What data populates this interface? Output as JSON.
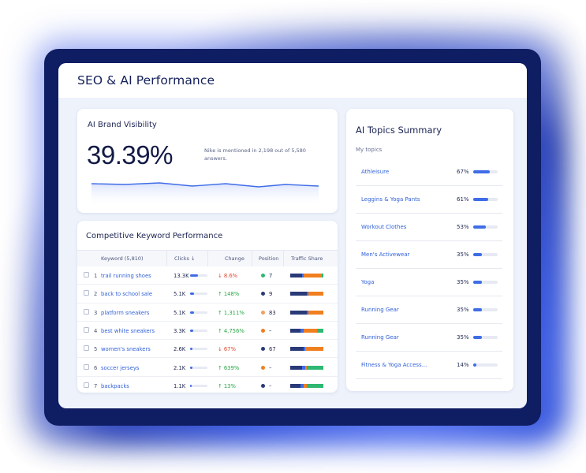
{
  "page": {
    "title": "SEO & AI Performance"
  },
  "brand_visibility": {
    "title": "AI Brand Visibility",
    "value": "39.39%",
    "note": "Nike is mentioned in 2,198 out of 5,580 answers."
  },
  "keywords": {
    "title": "Competitive Keyword Performance",
    "columns": {
      "keyword": "Keyword (5,810)",
      "clicks": "Clicks ↓",
      "change": "Change",
      "position": "Position",
      "traffic_share": "Traffic Share"
    },
    "rows": [
      {
        "n": "1",
        "keyword": "trail running shoes",
        "clicks": "13.3K",
        "click_frac": 0.45,
        "change": "↓ 8.6%",
        "dir": "down",
        "dot": "#2eb872",
        "position": "7",
        "share": [
          0.35,
          0.05,
          0.55,
          0.05
        ]
      },
      {
        "n": "2",
        "keyword": "back to school sale",
        "clicks": "5.1K",
        "click_frac": 0.22,
        "change": "↑ 148%",
        "dir": "up",
        "dot": "#2a3a78",
        "position": "9",
        "share": [
          0.5,
          0.05,
          0.45,
          0.0
        ]
      },
      {
        "n": "3",
        "keyword": "platform sneakers",
        "clicks": "5.1K",
        "click_frac": 0.22,
        "change": "↑ 1,311%",
        "dir": "up",
        "dot": "#f0a060",
        "position": "83",
        "share": [
          0.5,
          0.05,
          0.45,
          0.0
        ]
      },
      {
        "n": "4",
        "keyword": "best white sneakers",
        "clicks": "3.3K",
        "click_frac": 0.18,
        "change": "↑ 4,756%",
        "dir": "up",
        "dot": "#f07f1f",
        "position": "–",
        "share": [
          0.3,
          0.1,
          0.4,
          0.2
        ]
      },
      {
        "n": "5",
        "keyword": "women's sneakers",
        "clicks": "2.6K",
        "click_frac": 0.15,
        "change": "↓ 67%",
        "dir": "down",
        "dot": "#2a3a78",
        "position": "67",
        "share": [
          0.4,
          0.05,
          0.55,
          0.0
        ]
      },
      {
        "n": "6",
        "keyword": "soccer jerseys",
        "clicks": "2.1K",
        "click_frac": 0.12,
        "change": "↑ 639%",
        "dir": "up",
        "dot": "#f07f1f",
        "position": "–",
        "share": [
          0.35,
          0.1,
          0.05,
          0.5
        ]
      },
      {
        "n": "7",
        "keyword": "backpacks",
        "clicks": "1.1K",
        "click_frac": 0.08,
        "change": "↑ 13%",
        "dir": "up",
        "dot": "#2a3a78",
        "position": "–",
        "share": [
          0.3,
          0.1,
          0.1,
          0.5
        ]
      }
    ],
    "share_colors": [
      "#2a3a78",
      "#3f6de6",
      "#f07f1f",
      "#2eb872"
    ]
  },
  "topics": {
    "title": "AI Topics Summary",
    "subtitle": "My topics",
    "items": [
      {
        "name": "Athleisure",
        "pct": "67%",
        "frac": 0.67
      },
      {
        "name": "Leggins & Yoga Pants",
        "pct": "61%",
        "frac": 0.61
      },
      {
        "name": "Workout Clothes",
        "pct": "53%",
        "frac": 0.53
      },
      {
        "name": "Men's Activewear",
        "pct": "35%",
        "frac": 0.35
      },
      {
        "name": "Yoga",
        "pct": "35%",
        "frac": 0.35
      },
      {
        "name": "Running Gear",
        "pct": "35%",
        "frac": 0.35
      },
      {
        "name": "Running Gear",
        "pct": "35%",
        "frac": 0.35
      },
      {
        "name": "Fitness & Yoga Access...",
        "pct": "14%",
        "frac": 0.14
      }
    ]
  },
  "colors": {
    "accent": "#3f6de6",
    "frame": "#0f1d63",
    "title": "#14205a"
  }
}
